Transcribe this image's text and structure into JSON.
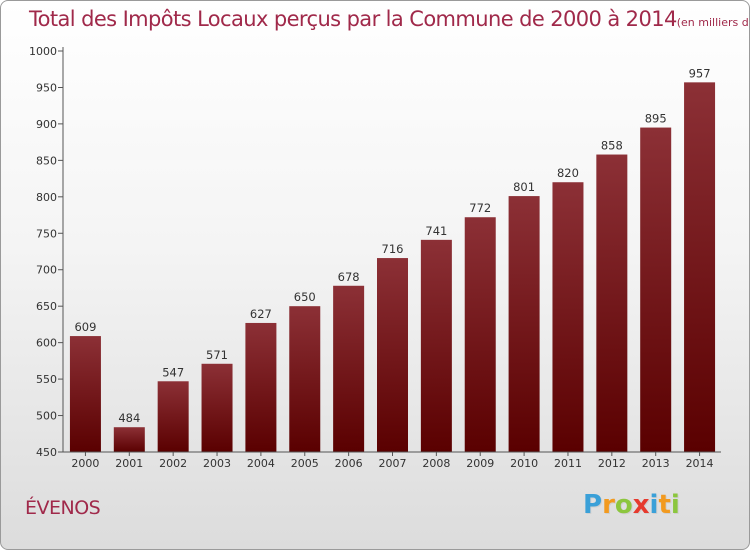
{
  "chart_data": {
    "type": "bar",
    "title": "Total des Impôts Locaux perçus par la Commune de 2000 à 2014",
    "title_unit": "(en milliers d'€)",
    "categories": [
      "2000",
      "2001",
      "2002",
      "2003",
      "2004",
      "2005",
      "2006",
      "2007",
      "2008",
      "2009",
      "2010",
      "2011",
      "2012",
      "2013",
      "2014"
    ],
    "values": [
      609,
      484,
      547,
      571,
      627,
      650,
      678,
      716,
      741,
      772,
      801,
      820,
      858,
      895,
      957
    ],
    "ylim": [
      450,
      1000
    ],
    "yticks": [
      450,
      500,
      550,
      600,
      650,
      700,
      750,
      800,
      850,
      900,
      950,
      1000
    ],
    "xlabel": "",
    "ylabel": "",
    "bar_color_top": "#8c3036",
    "bar_color_bottom": "#5a0000"
  },
  "commune": "ÉVENOS",
  "logo": {
    "letters": [
      "P",
      "r",
      "o",
      "x",
      "i",
      "t",
      "i"
    ],
    "colors": [
      "#3aa0d8",
      "#f29a1f",
      "#8cc63e",
      "#e63a2e",
      "#3aa0d8",
      "#f29a1f",
      "#8cc63e"
    ]
  }
}
